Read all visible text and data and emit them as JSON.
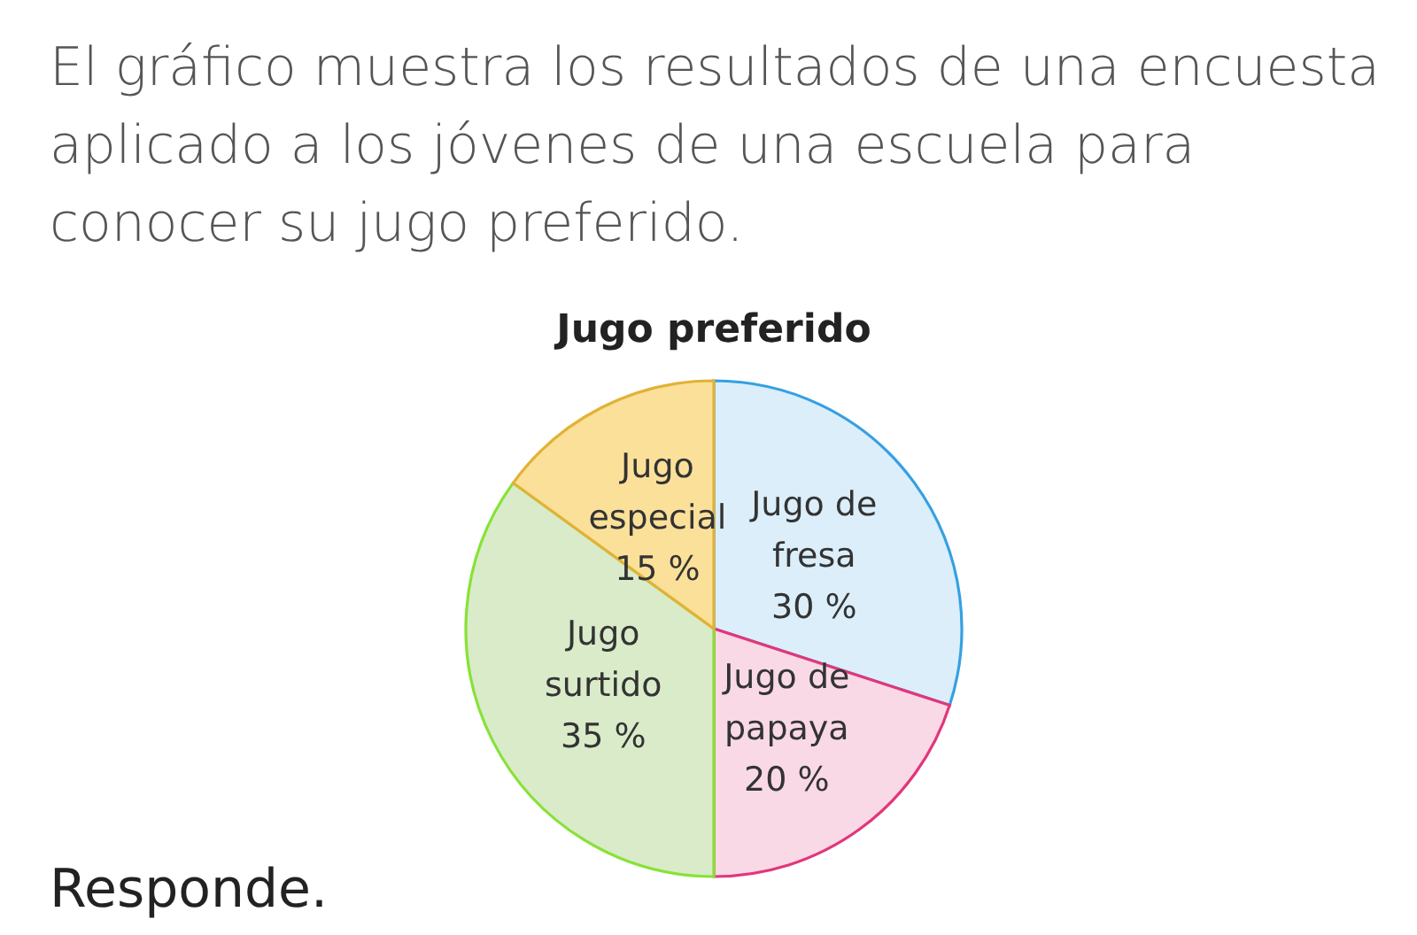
{
  "chart_data": {
    "type": "pie",
    "title": "Jugo preferido",
    "categories": [
      "Jugo de fresa",
      "Jugo de papaya",
      "Jugo surtido",
      "Jugo especial"
    ],
    "values": [
      30,
      20,
      35,
      15
    ],
    "value_labels": [
      "30 %",
      "20 %",
      "35 %",
      "15 %"
    ],
    "colors": [
      "#dbeefa",
      "#f9d9e6",
      "#d9ebc9",
      "#fbe09a"
    ],
    "annotations": [
      "El gráfico muestra los resultados de una encuesta aplicado a los jóvenes de una escuela para conocer su jugo preferido.",
      "Responde."
    ]
  }
}
